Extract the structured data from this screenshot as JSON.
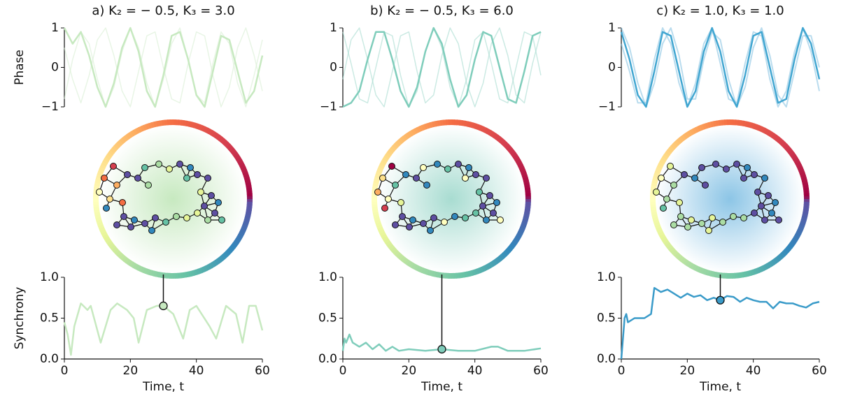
{
  "chart_data": [
    {
      "type": "line",
      "title": "a) K₂ = − 0.5, K₃ = 3.0",
      "ylabel": "Phase",
      "x": [
        0,
        2.5,
        5,
        7.5,
        10,
        12.5,
        15,
        17.5,
        20,
        22.5,
        25,
        27.5,
        30,
        32.5,
        35,
        37.5,
        40,
        42.5,
        45,
        47.5,
        50,
        52.5,
        55,
        57.5,
        60
      ],
      "xlim": [
        0,
        60
      ],
      "ylim": [
        -1,
        1
      ],
      "yticks": [
        {
          "value": -1,
          "label": "−1"
        },
        0,
        1
      ],
      "series": [
        {
          "color": "#d9efd3",
          "opacity": 0.6,
          "linewidth": 1.5,
          "values": [
            0.5,
            -0.3,
            -0.9,
            -0.2,
            0.7,
            1,
            0.3,
            -0.6,
            -1,
            -0.1,
            0.8,
            0.9,
            0,
            -0.8,
            -0.9,
            0.1,
            0.9,
            0.8,
            -0.2,
            -1,
            -0.5,
            0.5,
            1,
            0.3,
            -0.6
          ]
        },
        {
          "color": "#d9efd3",
          "opacity": 0.6,
          "linewidth": 1.5,
          "values": [
            -0.8,
            0.2,
            0.9,
            0.6,
            -0.3,
            -1,
            -0.5,
            0.4,
            1,
            0.5,
            -0.4,
            -1,
            -0.3,
            0.6,
            1,
            0.2,
            -0.7,
            -0.9,
            0.1,
            0.9,
            0.6,
            -0.4,
            -1,
            -0.2,
            0.7
          ]
        },
        {
          "color": "#c7e9c0",
          "opacity": 1,
          "linewidth": 2.5,
          "values": [
            1,
            0.6,
            0.9,
            0.3,
            -0.5,
            -1,
            -0.4,
            0.5,
            1,
            0.4,
            -0.6,
            -1,
            -0.2,
            0.8,
            0.9,
            0.2,
            -0.7,
            -1,
            -0.1,
            0.8,
            0.7,
            -0.1,
            -0.9,
            -0.6,
            0.3
          ]
        }
      ]
    },
    {
      "type": "line",
      "ylabel": "Synchrony",
      "xlabel": "Time, t",
      "x": [
        0,
        1,
        2,
        3,
        5,
        7,
        8,
        11,
        14,
        16,
        19,
        21,
        22.5,
        25,
        28,
        30,
        33,
        36,
        38,
        40,
        44,
        46,
        49,
        52,
        54,
        56,
        58,
        60
      ],
      "xlim": [
        0,
        60
      ],
      "ylim": [
        0,
        1
      ],
      "xticks": [
        0,
        20,
        40,
        60
      ],
      "yticks": [
        {
          "value": 0,
          "label": "0.0"
        },
        0.5,
        {
          "value": 1,
          "label": "1.0"
        }
      ],
      "series": [
        {
          "color": "#c7e9c0",
          "opacity": 1,
          "linewidth": 2.5,
          "values": [
            0.45,
            0.3,
            0.05,
            0.4,
            0.68,
            0.6,
            0.65,
            0.2,
            0.6,
            0.68,
            0.6,
            0.5,
            0.2,
            0.6,
            0.65,
            0.65,
            0.55,
            0.25,
            0.6,
            0.65,
            0.4,
            0.25,
            0.65,
            0.55,
            0.2,
            0.65,
            0.65,
            0.35
          ]
        }
      ],
      "highlight": {
        "x": 30,
        "y": 0.65
      }
    },
    {
      "type": "line",
      "title": "b) K₂ = − 0.5, K₃ = 6.0",
      "x": [
        0,
        2.5,
        5,
        7.5,
        10,
        12.5,
        15,
        17.5,
        20,
        22.5,
        25,
        27.5,
        30,
        32.5,
        35,
        37.5,
        40,
        42.5,
        45,
        47.5,
        50,
        52.5,
        55,
        57.5,
        60
      ],
      "xlim": [
        0,
        60
      ],
      "ylim": [
        -1,
        1
      ],
      "yticks": [
        {
          "value": -1,
          "label": "−1"
        },
        0,
        1
      ],
      "series": [
        {
          "color": "#a8dcd1",
          "opacity": 0.6,
          "linewidth": 1.5,
          "values": [
            0.9,
            0.1,
            -0.8,
            -0.9,
            0,
            0.9,
            0.8,
            -0.2,
            -1,
            -0.6,
            0.4,
            1,
            0.5,
            -0.5,
            -1,
            -0.3,
            0.7,
            0.9,
            0.1,
            -0.8,
            -0.9,
            0,
            0.9,
            0.8,
            -0.2
          ]
        },
        {
          "color": "#a8dcd1",
          "opacity": 0.6,
          "linewidth": 1.5,
          "values": [
            -0.3,
            0.7,
            1,
            0.2,
            -0.7,
            -1,
            -0.1,
            0.8,
            0.9,
            -0.1,
            -0.9,
            -0.7,
            0.3,
            1,
            0.6,
            -0.4,
            -1,
            -0.4,
            0.6,
            1,
            0.3,
            -0.7,
            -0.9,
            0.1,
            0.9
          ]
        },
        {
          "color": "#7fcdbb",
          "opacity": 1,
          "linewidth": 2.5,
          "values": [
            -1,
            -0.9,
            -0.6,
            0.2,
            0.9,
            0.9,
            0.2,
            -0.6,
            -1,
            -0.5,
            0.4,
            1,
            0.6,
            -0.3,
            -1,
            -0.7,
            0.2,
            0.9,
            0.8,
            0,
            -0.8,
            -0.9,
            -0.1,
            0.8,
            0.9
          ]
        }
      ]
    },
    {
      "type": "line",
      "xlabel": "Time, t",
      "x": [
        0,
        0.5,
        1,
        2,
        3,
        5,
        7,
        9,
        11,
        13,
        15,
        17,
        20,
        25,
        30,
        35,
        40,
        45,
        47,
        50,
        55,
        60
      ],
      "xlim": [
        0,
        60
      ],
      "ylim": [
        0,
        1
      ],
      "xticks": [
        0,
        20,
        40,
        60
      ],
      "yticks": [
        {
          "value": 0,
          "label": "0.0"
        },
        0.5,
        {
          "value": 1,
          "label": "1.0"
        }
      ],
      "series": [
        {
          "color": "#7fcdbb",
          "opacity": 1,
          "linewidth": 2.5,
          "values": [
            0.1,
            0.25,
            0.2,
            0.3,
            0.2,
            0.15,
            0.2,
            0.12,
            0.18,
            0.1,
            0.15,
            0.1,
            0.12,
            0.1,
            0.12,
            0.1,
            0.1,
            0.15,
            0.15,
            0.1,
            0.1,
            0.13
          ]
        }
      ],
      "highlight": {
        "x": 30,
        "y": 0.12
      }
    },
    {
      "type": "line",
      "title": "c) K₂ = 1.0, K₃ = 1.0",
      "x": [
        0,
        2.5,
        5,
        7.5,
        10,
        12.5,
        15,
        17.5,
        20,
        22.5,
        25,
        27.5,
        30,
        32.5,
        35,
        37.5,
        40,
        42.5,
        45,
        47.5,
        50,
        52.5,
        55,
        57.5,
        60
      ],
      "xlim": [
        0,
        60
      ],
      "ylim": [
        -1,
        1
      ],
      "yticks": [
        {
          "value": -1,
          "label": "−1"
        },
        0,
        1
      ],
      "series": [
        {
          "color": "#7fbfe0",
          "opacity": 0.55,
          "linewidth": 2,
          "values": [
            0.6,
            -0.1,
            -0.9,
            -0.9,
            0.2,
            1,
            0.6,
            -0.4,
            -1,
            -0.4,
            0.6,
            1,
            0.1,
            -0.8,
            -0.9,
            0.1,
            0.9,
            0.8,
            -0.3,
            -1,
            -0.6,
            0.4,
            1,
            0.4,
            -0.6
          ]
        },
        {
          "color": "#7fbfe0",
          "opacity": 0.55,
          "linewidth": 2,
          "values": [
            1,
            0.5,
            -0.4,
            -1,
            -0.4,
            0.6,
            1,
            0.3,
            -0.8,
            -0.8,
            0.2,
            0.9,
            0.7,
            -0.3,
            -1,
            -0.5,
            0.5,
            1,
            0.3,
            -0.7,
            -1,
            -0.1,
            0.8,
            0.8,
            0
          ]
        },
        {
          "color": "#41a6d1",
          "opacity": 1,
          "linewidth": 2.5,
          "values": [
            0.9,
            0.2,
            -0.7,
            -1,
            -0.1,
            0.9,
            0.8,
            -0.1,
            -1,
            -0.6,
            0.4,
            1,
            0.4,
            -0.6,
            -1,
            -0.2,
            0.8,
            0.9,
            0,
            -0.9,
            -0.8,
            0.2,
            1,
            0.6,
            -0.3
          ]
        }
      ]
    },
    {
      "type": "line",
      "xlabel": "Time, t",
      "x": [
        0,
        1,
        1.5,
        2,
        4,
        7,
        9,
        10,
        12,
        14,
        16,
        18,
        20,
        22,
        24,
        26,
        28,
        30,
        32,
        34,
        36,
        38,
        40,
        42,
        44,
        46,
        48,
        50,
        52,
        54,
        56,
        58,
        60
      ],
      "xlim": [
        0,
        60
      ],
      "ylim": [
        0,
        1
      ],
      "xticks": [
        0,
        20,
        40,
        60
      ],
      "yticks": [
        {
          "value": 0,
          "label": "0.0"
        },
        0.5,
        {
          "value": 1,
          "label": "1.0"
        }
      ],
      "series": [
        {
          "color": "#3a9bc9",
          "opacity": 1,
          "linewidth": 2.5,
          "values": [
            0,
            0.5,
            0.55,
            0.45,
            0.5,
            0.5,
            0.55,
            0.87,
            0.82,
            0.85,
            0.8,
            0.75,
            0.8,
            0.76,
            0.78,
            0.72,
            0.75,
            0.72,
            0.77,
            0.76,
            0.7,
            0.75,
            0.72,
            0.7,
            0.7,
            0.62,
            0.7,
            0.68,
            0.68,
            0.65,
            0.63,
            0.68,
            0.7
          ]
        }
      ],
      "highlight": {
        "x": 30,
        "y": 0.72
      }
    }
  ]
}
